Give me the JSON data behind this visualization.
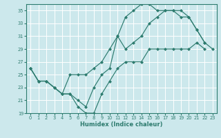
{
  "xlabel": "Humidex (Indice chaleur)",
  "bg_color": "#cce8ec",
  "grid_color": "#ffffff",
  "line_color": "#2d7b6e",
  "xlim": [
    -0.5,
    23.5
  ],
  "ylim": [
    19,
    36
  ],
  "xticks": [
    0,
    1,
    2,
    3,
    4,
    5,
    6,
    7,
    8,
    9,
    10,
    11,
    12,
    13,
    14,
    15,
    16,
    17,
    18,
    19,
    20,
    21,
    22,
    23
  ],
  "yticks": [
    19,
    21,
    23,
    25,
    27,
    29,
    31,
    33,
    35
  ],
  "line1_x": [
    0,
    1,
    2,
    3,
    4,
    5,
    6,
    7,
    8,
    9,
    10,
    11,
    12,
    13,
    14,
    15,
    16,
    17,
    18,
    19,
    20,
    21,
    22,
    23
  ],
  "line1_y": [
    26,
    24,
    24,
    23,
    22,
    25,
    25,
    25,
    26,
    27,
    29,
    31,
    29,
    30,
    31,
    33,
    34,
    35,
    35,
    35,
    34,
    32,
    30,
    29
  ],
  "line2_x": [
    0,
    1,
    2,
    3,
    4,
    5,
    6,
    7,
    8,
    9,
    10,
    11,
    12,
    13,
    14,
    15,
    16,
    17,
    18,
    19,
    20,
    21,
    22,
    23
  ],
  "line2_y": [
    26,
    24,
    24,
    23,
    22,
    22,
    21,
    20,
    23,
    25,
    26,
    31,
    34,
    35,
    36,
    36,
    35,
    35,
    35,
    34,
    34,
    32,
    30,
    null
  ],
  "line3_x": [
    0,
    1,
    2,
    3,
    4,
    5,
    6,
    7,
    8,
    9,
    10,
    11,
    12,
    13,
    14,
    15,
    16,
    17,
    18,
    19,
    20,
    21,
    22,
    23
  ],
  "line3_y": [
    26,
    24,
    24,
    23,
    22,
    22,
    20,
    19,
    19,
    22,
    24,
    26,
    27,
    27,
    27,
    29,
    29,
    29,
    29,
    29,
    29,
    30,
    29,
    null
  ]
}
